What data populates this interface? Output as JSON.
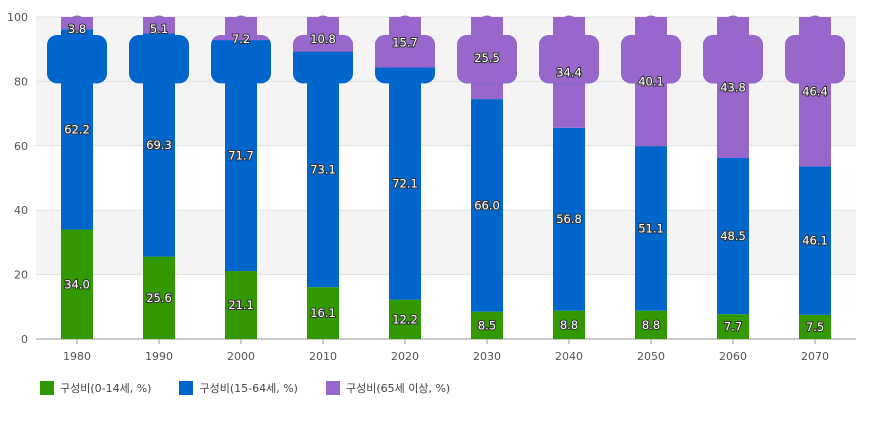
{
  "chart_data": {
    "type": "bar",
    "stacked": true,
    "categories": [
      "1980",
      "1990",
      "2000",
      "2010",
      "2020",
      "2030",
      "2040",
      "2050",
      "2060",
      "2070"
    ],
    "series": [
      {
        "name": "구성비(0-14세, %)",
        "color": "#339900",
        "values": [
          34.0,
          25.6,
          21.1,
          16.1,
          12.2,
          8.5,
          8.8,
          8.8,
          7.7,
          7.5
        ]
      },
      {
        "name": "구성비(15-64세, %)",
        "color": "#0066cc",
        "values": [
          62.2,
          69.3,
          71.7,
          73.1,
          72.1,
          66.0,
          56.8,
          51.1,
          48.5,
          46.1
        ]
      },
      {
        "name": "구성비(65세 이상, %)",
        "color": "#9966cc",
        "values": [
          3.8,
          5.1,
          7.2,
          10.8,
          15.7,
          25.5,
          34.4,
          40.1,
          43.8,
          46.4
        ]
      }
    ],
    "ylim": [
      0,
      100
    ],
    "yticks": [
      0,
      20,
      40,
      60,
      80,
      100
    ],
    "grid": true,
    "legend": "bottom-left",
    "title": "",
    "xlabel": "",
    "ylabel": ""
  }
}
